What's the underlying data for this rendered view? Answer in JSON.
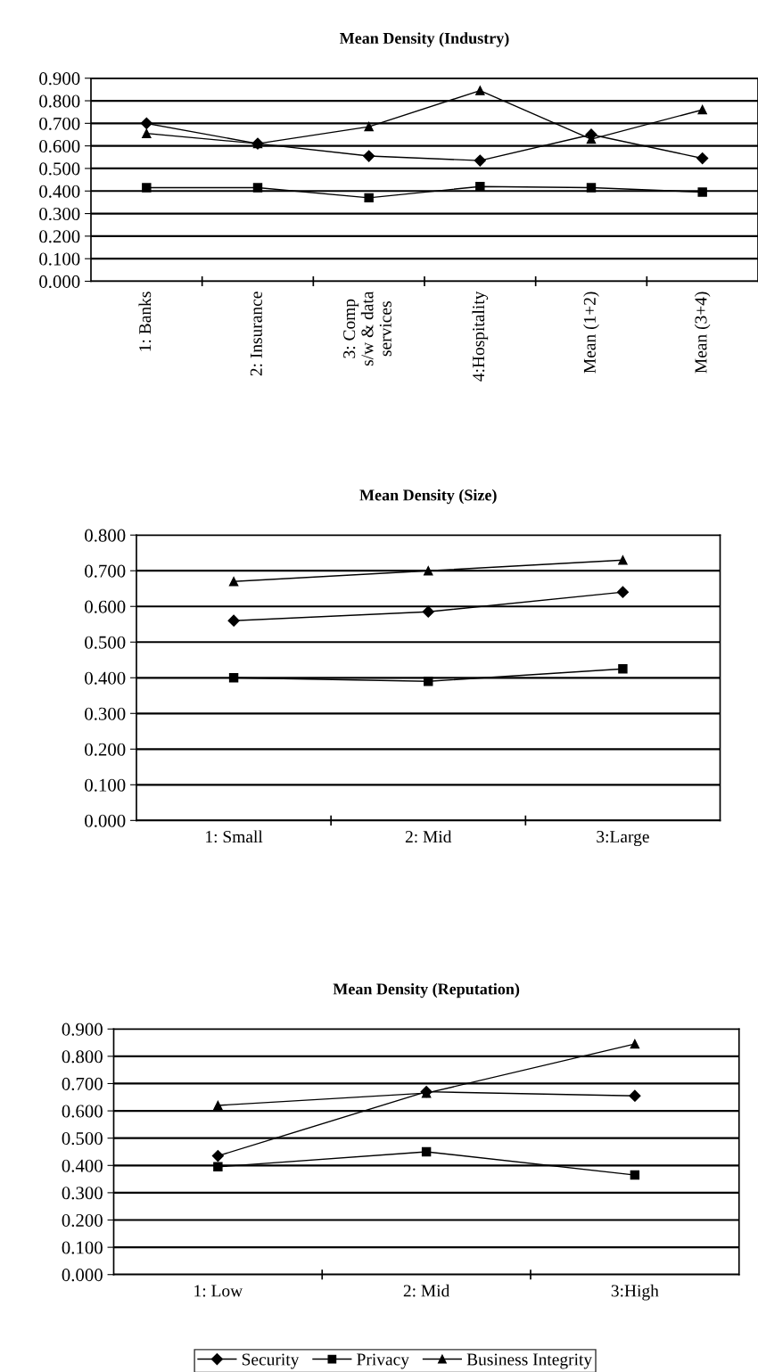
{
  "chart_data": [
    {
      "type": "line",
      "title": "Mean Density (Industry)",
      "categories": [
        "1: Banks",
        "2: Insurance",
        "3: Comp\ns/w & data\nservices",
        "4:Hospitality",
        "Mean (1+2)",
        "Mean (3+4)"
      ],
      "series": [
        {
          "color": "#000000",
          "marker": "diamond",
          "values": [
            0.7,
            0.61,
            0.555,
            0.535,
            0.65,
            0.545
          ]
        },
        {
          "color": "#000000",
          "marker": "square",
          "values": [
            0.415,
            0.415,
            0.37,
            0.42,
            0.415,
            0.395
          ]
        },
        {
          "color": "#000000",
          "marker": "triangle",
          "values": [
            0.655,
            0.61,
            0.685,
            0.845,
            0.63,
            0.76
          ]
        }
      ],
      "ylim": [
        0,
        0.9
      ],
      "yticks": [
        {
          "value": 0,
          "label": "0.000"
        },
        {
          "value": 0.1,
          "label": "0.100"
        },
        {
          "value": 0.2,
          "label": "0.200"
        },
        {
          "value": 0.3,
          "label": "0.300"
        },
        {
          "value": 0.4,
          "label": "0.400"
        },
        {
          "value": 0.5,
          "label": "0.500"
        },
        {
          "value": 0.6,
          "label": "0.600"
        },
        {
          "value": 0.7,
          "label": "0.700"
        },
        {
          "value": 0.8,
          "label": "0.800"
        },
        {
          "value": 0.9,
          "label": "0.900"
        }
      ],
      "grid": "y",
      "legend": false,
      "line_style": "solid"
    },
    {
      "type": "line",
      "title": "Mean Density (Size)",
      "categories": [
        "1: Small",
        "2: Mid",
        "3:Large"
      ],
      "series": [
        {
          "color": "#000000",
          "marker": "diamond",
          "values": [
            0.56,
            0.585,
            0.64
          ]
        },
        {
          "color": "#000000",
          "marker": "square",
          "values": [
            0.4,
            0.39,
            0.425
          ]
        },
        {
          "color": "#000000",
          "marker": "triangle",
          "values": [
            0.67,
            0.7,
            0.73
          ]
        }
      ],
      "ylim": [
        0,
        0.8
      ],
      "yticks": [
        {
          "value": 0,
          "label": "0.000"
        },
        {
          "value": 0.1,
          "label": "0.100"
        },
        {
          "value": 0.2,
          "label": "0.200"
        },
        {
          "value": 0.3,
          "label": "0.300"
        },
        {
          "value": 0.4,
          "label": "0.400"
        },
        {
          "value": 0.5,
          "label": "0.500"
        },
        {
          "value": 0.6,
          "label": "0.600"
        },
        {
          "value": 0.7,
          "label": "0.700"
        },
        {
          "value": 0.8,
          "label": "0.800"
        }
      ],
      "grid": "y",
      "legend": false,
      "line_style": "solid"
    },
    {
      "type": "line",
      "title": "Mean Density (Reputation)",
      "categories": [
        "1: Low",
        "2: Mid",
        "3:High"
      ],
      "series": [
        {
          "name": "Security",
          "color": "#000000",
          "marker": "diamond",
          "values": [
            0.435,
            0.67,
            0.655
          ]
        },
        {
          "name": "Privacy",
          "color": "#000000",
          "marker": "square",
          "values": [
            0.395,
            0.45,
            0.365
          ]
        },
        {
          "name": "Business Integrity",
          "color": "#000000",
          "marker": "triangle",
          "values": [
            0.62,
            0.665,
            0.845
          ]
        }
      ],
      "ylim": [
        0,
        0.9
      ],
      "yticks": [
        {
          "value": 0,
          "label": "0.000"
        },
        {
          "value": 0.1,
          "label": "0.100"
        },
        {
          "value": 0.2,
          "label": "0.200"
        },
        {
          "value": 0.3,
          "label": "0.300"
        },
        {
          "value": 0.4,
          "label": "0.400"
        },
        {
          "value": 0.5,
          "label": "0.500"
        },
        {
          "value": 0.6,
          "label": "0.600"
        },
        {
          "value": 0.7,
          "label": "0.700"
        },
        {
          "value": 0.8,
          "label": "0.800"
        },
        {
          "value": 0.9,
          "label": "0.900"
        }
      ],
      "grid": "y",
      "legend": "bottom",
      "line_style": "solid"
    }
  ]
}
